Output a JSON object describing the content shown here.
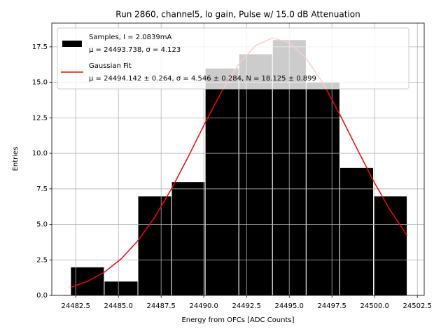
{
  "chart_data": {
    "type": "histogram",
    "title": "Run 2860, channel5, lo gain, Pulse w/ 15.0 dB Attenuation",
    "xlabel": "Energy from OFCs [ADC Counts]",
    "ylabel": "Entries",
    "bins": [
      24482.2,
      24484.17,
      24486.14,
      24488.11,
      24490.08,
      24492.05,
      24494.02,
      24495.99,
      24497.96,
      24499.93,
      24501.9
    ],
    "series": [
      {
        "name": "Samples, I = 2.0839mA\nμ = 24493.738, σ = 4.123",
        "color": "#000000",
        "values": [
          2,
          1,
          7,
          8,
          16,
          17,
          18,
          15,
          9,
          7
        ]
      },
      {
        "name": "Gaussian Fit\nμ = 24494.142 ± 0.264, σ = 4.546 ± 0.284, N = 18.125 ± 0.899",
        "type": "line",
        "color": "#ff0000",
        "x": [
          24482.2,
          24483.19,
          24484.17,
          24485.16,
          24486.14,
          24487.13,
          24488.11,
          24489.1,
          24490.08,
          24491.07,
          24492.05,
          24493.04,
          24494.02,
          24495.01,
          24495.99,
          24496.98,
          24497.96,
          24498.95,
          24499.93,
          24500.92,
          24501.9
        ],
        "values": [
          0.57,
          0.99,
          1.63,
          2.57,
          3.85,
          5.51,
          7.51,
          9.79,
          12.16,
          14.41,
          16.3,
          17.6,
          18.12,
          17.8,
          16.69,
          14.93,
          12.74,
          10.37,
          8.06,
          5.97,
          4.22
        ]
      }
    ],
    "xlim": [
      24481.1,
      24502.9
    ],
    "ylim": [
      0,
      19.17
    ],
    "xticks": [
      24482.5,
      {
        "value": 24485,
        "label": "24485.0"
      },
      24487.5,
      {
        "value": 24490,
        "label": "24490.0"
      },
      24492.5,
      {
        "value": 24495,
        "label": "24495.0"
      },
      24497.5,
      {
        "value": 24500,
        "label": "24500.0"
      },
      24502.5
    ],
    "yticks": [
      {
        "value": 0,
        "label": "0.0"
      },
      2.5,
      {
        "value": 5,
        "label": "5.0"
      },
      7.5,
      {
        "value": 10,
        "label": "10.0"
      },
      12.5,
      {
        "value": 15,
        "label": "15.0"
      },
      17.5
    ],
    "grid": true,
    "legend": "upper left"
  }
}
